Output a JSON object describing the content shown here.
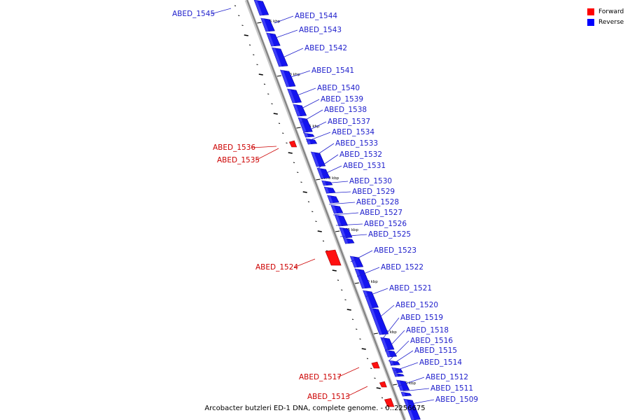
{
  "legend": {
    "forward_label": "Forward",
    "reverse_label": "Reverse",
    "forward_color": "#ff0000",
    "reverse_color": "#0000ff"
  },
  "caption": "Arcobacter butzleri ED-1 DNA, complete genome. - 0..2256675",
  "colors": {
    "label_forward": "#cc0000",
    "label_reverse": "#2020cc",
    "backbone": "#808080"
  },
  "ticks": [
    "1585 kbp",
    "1580 kbp",
    "1575 kbp",
    "1570 kbp",
    "1565 kbp",
    "1560 kbp",
    "1555 kbp",
    "1550 kbp"
  ],
  "genes": [
    {
      "name": "ABED_1545",
      "strand": "reverse"
    },
    {
      "name": "ABED_1544",
      "strand": "reverse"
    },
    {
      "name": "ABED_1543",
      "strand": "reverse"
    },
    {
      "name": "ABED_1542",
      "strand": "reverse"
    },
    {
      "name": "ABED_1541",
      "strand": "reverse"
    },
    {
      "name": "ABED_1540",
      "strand": "reverse"
    },
    {
      "name": "ABED_1539",
      "strand": "reverse"
    },
    {
      "name": "ABED_1538",
      "strand": "reverse"
    },
    {
      "name": "ABED_1537",
      "strand": "reverse"
    },
    {
      "name": "ABED_1536",
      "strand": "forward"
    },
    {
      "name": "ABED_1535",
      "strand": "forward"
    },
    {
      "name": "ABED_1534",
      "strand": "reverse"
    },
    {
      "name": "ABED_1533",
      "strand": "reverse"
    },
    {
      "name": "ABED_1532",
      "strand": "reverse"
    },
    {
      "name": "ABED_1531",
      "strand": "reverse"
    },
    {
      "name": "ABED_1530",
      "strand": "reverse"
    },
    {
      "name": "ABED_1529",
      "strand": "reverse"
    },
    {
      "name": "ABED_1528",
      "strand": "reverse"
    },
    {
      "name": "ABED_1527",
      "strand": "reverse"
    },
    {
      "name": "ABED_1526",
      "strand": "reverse"
    },
    {
      "name": "ABED_1525",
      "strand": "reverse"
    },
    {
      "name": "ABED_1524",
      "strand": "forward"
    },
    {
      "name": "ABED_1523",
      "strand": "reverse"
    },
    {
      "name": "ABED_1522",
      "strand": "reverse"
    },
    {
      "name": "ABED_1521",
      "strand": "reverse"
    },
    {
      "name": "ABED_1520",
      "strand": "reverse"
    },
    {
      "name": "ABED_1519",
      "strand": "reverse"
    },
    {
      "name": "ABED_1518",
      "strand": "reverse"
    },
    {
      "name": "ABED_1517",
      "strand": "forward"
    },
    {
      "name": "ABED_1516",
      "strand": "reverse"
    },
    {
      "name": "ABED_1515",
      "strand": "reverse"
    },
    {
      "name": "ABED_1514",
      "strand": "reverse"
    },
    {
      "name": "ABED_1513",
      "strand": "forward"
    },
    {
      "name": "ABED_1512",
      "strand": "reverse"
    },
    {
      "name": "ABED_1511",
      "strand": "reverse"
    },
    {
      "name": "ABED_1509",
      "strand": "reverse"
    }
  ]
}
